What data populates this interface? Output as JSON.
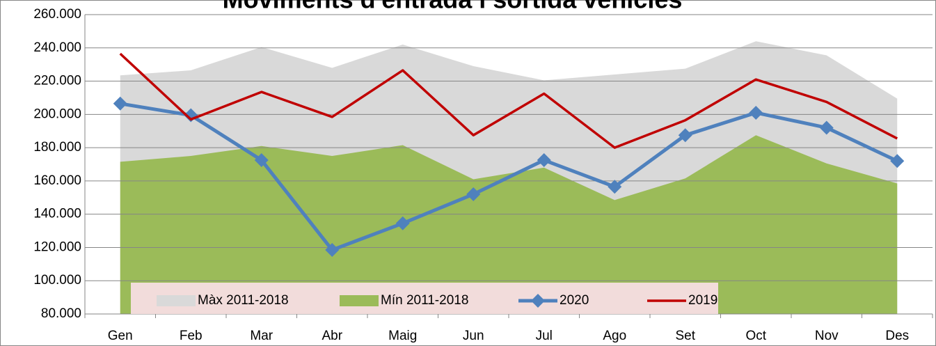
{
  "chart_data": {
    "type": "line",
    "title": "Moviments d'entrada i sortida vehicles",
    "categories": [
      "Gen",
      "Feb",
      "Mar",
      "Abr",
      "Maig",
      "Jun",
      "Jul",
      "Ago",
      "Set",
      "Oct",
      "Nov",
      "Des"
    ],
    "series": [
      {
        "name": "Màx 2011-2018",
        "type": "area",
        "color": "#d9d9d9",
        "values": [
          223500,
          226500,
          240500,
          228000,
          242000,
          229000,
          220500,
          224000,
          227500,
          244000,
          235500,
          209500
        ]
      },
      {
        "name": "Mín 2011-2018",
        "type": "area",
        "color": "#9bbb59",
        "values": [
          171500,
          175000,
          181000,
          175000,
          181500,
          161000,
          168000,
          148500,
          161500,
          187500,
          170500,
          158500
        ]
      },
      {
        "name": "2020",
        "type": "line",
        "marker": "diamond",
        "color": "#4f81bd",
        "values": [
          206500,
          199500,
          172500,
          118500,
          134500,
          152000,
          172500,
          156500,
          187500,
          201000,
          192000,
          172000
        ]
      },
      {
        "name": "2019",
        "type": "line",
        "color": "#c00000",
        "values": [
          236500,
          197000,
          213500,
          198500,
          226500,
          187500,
          212500,
          180000,
          196500,
          221000,
          207500,
          185500
        ]
      }
    ],
    "ylim": [
      80000,
      260000
    ],
    "yticks": [
      {
        "value": 80000,
        "label": "80.000"
      },
      {
        "value": 100000,
        "label": "100.000"
      },
      {
        "value": 120000,
        "label": "120.000"
      },
      {
        "value": 140000,
        "label": "140.000"
      },
      {
        "value": 160000,
        "label": "160.000"
      },
      {
        "value": 180000,
        "label": "180.000"
      },
      {
        "value": 200000,
        "label": "200.000"
      },
      {
        "value": 220000,
        "label": "220.000"
      },
      {
        "value": 240000,
        "label": "240.000"
      },
      {
        "value": 260000,
        "label": "260.000"
      }
    ],
    "grid": true,
    "legend": "bottom"
  }
}
